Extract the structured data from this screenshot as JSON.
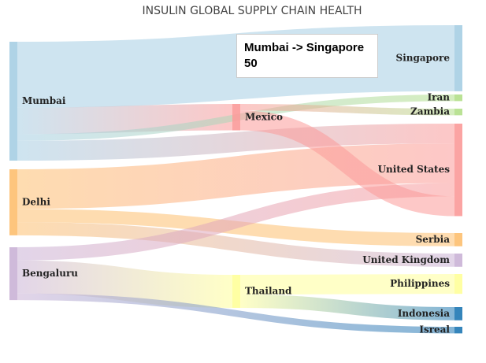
{
  "chart_data": {
    "type": "sankey",
    "title": "INSULIN GLOBAL SUPPLY CHAIN HEALTH",
    "nodes": [
      {
        "id": "Mumbai",
        "label": "Mumbai",
        "color": "#a6cee3"
      },
      {
        "id": "Delhi",
        "label": "Delhi",
        "color": "#fdbf6f"
      },
      {
        "id": "Bengaluru",
        "label": "Bengaluru",
        "color": "#cab2d6"
      },
      {
        "id": "Mexico",
        "label": "Mexico",
        "color": "#fb9a99"
      },
      {
        "id": "Thailand",
        "label": "Thailand",
        "color": "#ffff99"
      },
      {
        "id": "Singapore",
        "label": "Singapore",
        "color": "#a6cee3"
      },
      {
        "id": "Iran",
        "label": "Iran",
        "color": "#b2df8a"
      },
      {
        "id": "Zambia",
        "label": "Zambia",
        "color": "#b2df8a"
      },
      {
        "id": "United States",
        "label": "United States",
        "color": "#fb9a99"
      },
      {
        "id": "Serbia",
        "label": "Serbia",
        "color": "#fdbf6f"
      },
      {
        "id": "United Kingdom",
        "label": "United Kingdom",
        "color": "#cab2d6"
      },
      {
        "id": "Philippines",
        "label": "Philippines",
        "color": "#ffff99"
      },
      {
        "id": "Indonesia",
        "label": "Indonesia",
        "color": "#1f78b4"
      },
      {
        "id": "Isreal",
        "label": "Isreal",
        "color": "#1f78b4"
      }
    ],
    "links": [
      {
        "source": "Mumbai",
        "target": "Singapore",
        "value": 50
      },
      {
        "source": "Mumbai",
        "target": "Mexico",
        "value": 20
      },
      {
        "source": "Mumbai",
        "target": "Iran",
        "value": 5
      },
      {
        "source": "Mumbai",
        "target": "United States",
        "value": 15
      },
      {
        "source": "Delhi",
        "target": "United States",
        "value": 30
      },
      {
        "source": "Delhi",
        "target": "Serbia",
        "value": 10
      },
      {
        "source": "Delhi",
        "target": "United Kingdom",
        "value": 10
      },
      {
        "source": "Bengaluru",
        "target": "United States",
        "value": 10
      },
      {
        "source": "Bengaluru",
        "target": "Thailand",
        "value": 25
      },
      {
        "source": "Bengaluru",
        "target": "Isreal",
        "value": 5
      },
      {
        "source": "Mexico",
        "target": "Zambia",
        "value": 5
      },
      {
        "source": "Mexico",
        "target": "United States",
        "value": 15
      },
      {
        "source": "Thailand",
        "target": "Philippines",
        "value": 15
      },
      {
        "source": "Thailand",
        "target": "Indonesia",
        "value": 10
      }
    ]
  },
  "tooltip": {
    "line1": "Mumbai -> Singapore",
    "line2": "50"
  }
}
